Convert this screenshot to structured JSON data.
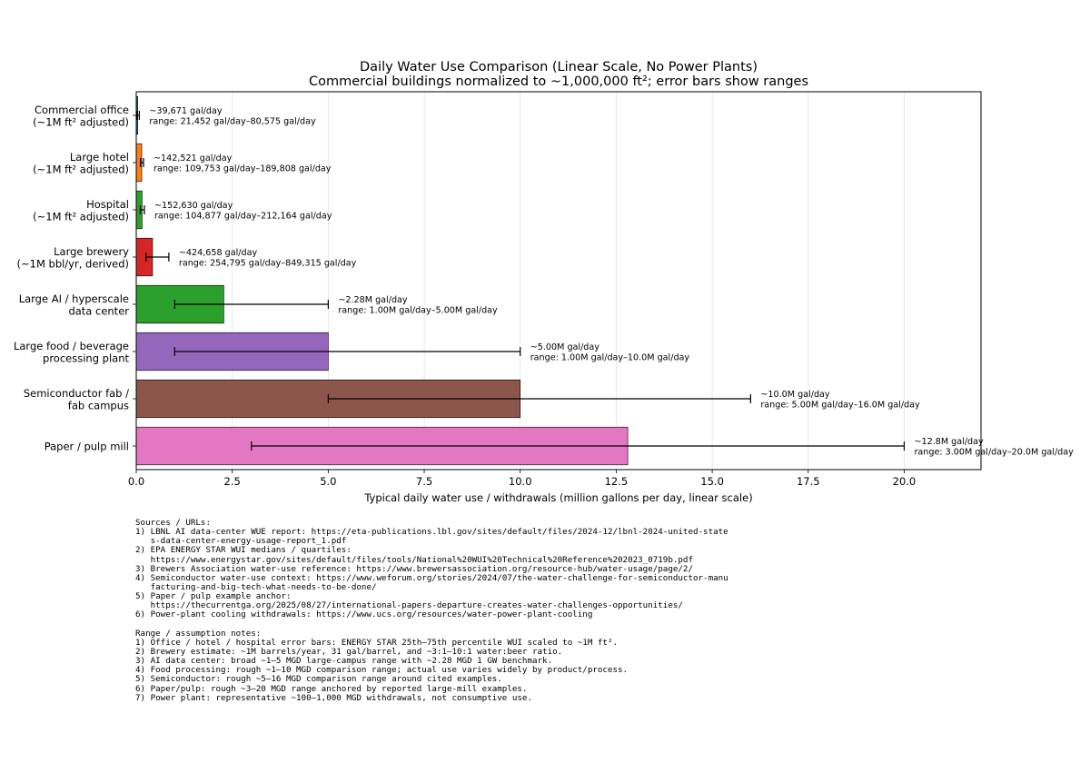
{
  "chart_data": {
    "type": "bar",
    "orientation": "horizontal",
    "title": "Daily Water Use Comparison (Linear Scale, No Power Plants)",
    "subtitle": "Commercial buildings normalized to ~1,000,000 ft²; error bars show ranges",
    "xlabel": "Typical daily water use / withdrawals (million gallons per day, linear scale)",
    "ylabel": "",
    "xlim": [
      0,
      22
    ],
    "xticks": [
      "0.0",
      "2.5",
      "5.0",
      "7.5",
      "10.0",
      "12.5",
      "15.0",
      "17.5",
      "20.0"
    ],
    "grid": "vertical",
    "categories": [
      [
        "Commercial office",
        "(~1M ft² adjusted)"
      ],
      [
        "Large hotel",
        "(~1M ft² adjusted)"
      ],
      [
        "Hospital",
        "(~1M ft² adjusted)"
      ],
      [
        "Large brewery",
        "(~1M bbl/yr, derived)"
      ],
      [
        "Large AI / hyperscale",
        "data center"
      ],
      [
        "Large food / beverage",
        "processing plant"
      ],
      [
        "Semiconductor fab /",
        "fab campus"
      ],
      [
        "Paper / pulp mill"
      ]
    ],
    "values": [
      0.039671,
      0.142521,
      0.15263,
      0.424658,
      2.28,
      5.0,
      10.0,
      12.8
    ],
    "ranges": [
      [
        0.021452,
        0.080575
      ],
      [
        0.109753,
        0.189808
      ],
      [
        0.104877,
        0.212164
      ],
      [
        0.254795,
        0.849315
      ],
      [
        1.0,
        5.0
      ],
      [
        1.0,
        10.0
      ],
      [
        5.0,
        16.0
      ],
      [
        3.0,
        20.0
      ]
    ],
    "colors": [
      "#1f77b4",
      "#ff7f0e",
      "#2ca02c",
      "#d62728",
      "#2ca02c",
      "#9467bd",
      "#8c564b",
      "#e377c2"
    ],
    "annotations": [
      [
        "~39,671 gal/day",
        "range: 21,452 gal/day–80,575 gal/day"
      ],
      [
        "~142,521 gal/day",
        "range: 109,753 gal/day–189,808 gal/day"
      ],
      [
        "~152,630 gal/day",
        "range: 104,877 gal/day–212,164 gal/day"
      ],
      [
        "~424,658 gal/day",
        "range: 254,795 gal/day–849,315 gal/day"
      ],
      [
        "~2.28M gal/day",
        "range: 1.00M gal/day–5.00M gal/day"
      ],
      [
        "~5.00M gal/day",
        "range: 1.00M gal/day–10.0M gal/day"
      ],
      [
        "~10.0M gal/day",
        "range: 5.00M gal/day–16.0M gal/day"
      ],
      [
        "~12.8M gal/day",
        "range: 3.00M gal/day–20.0M gal/day"
      ]
    ]
  },
  "notes": [
    "Sources / URLs:",
    "1) LBNL AI data-center WUE report: https://eta-publications.lbl.gov/sites/default/files/2024-12/lbnl-2024-united-state",
    "   s-data-center-energy-usage-report_1.pdf",
    "2) EPA ENERGY STAR WUI medians / quartiles:",
    "   https://www.energystar.gov/sites/default/files/tools/National%20WUI%20Technical%20Reference%202023_0719b.pdf",
    "3) Brewers Association water-use reference: https://www.brewersassociation.org/resource-hub/water-usage/page/2/",
    "4) Semiconductor water-use context: https://www.weforum.org/stories/2024/07/the-water-challenge-for-semiconductor-manu",
    "   facturing-and-big-tech-what-needs-to-be-done/",
    "5) Paper / pulp example anchor:",
    "   https://thecurrentga.org/2025/08/27/international-papers-departure-creates-water-challenges-opportunities/",
    "6) Power-plant cooling withdrawals: https://www.ucs.org/resources/water-power-plant-cooling",
    "",
    "Range / assumption notes:",
    "1) Office / hotel / hospital error bars: ENERGY STAR 25th–75th percentile WUI scaled to ~1M ft².",
    "2) Brewery estimate: ~1M barrels/year, 31 gal/barrel, and ~3:1–10:1 water:beer ratio.",
    "3) AI data center: broad ~1–5 MGD large-campus range with ~2.28 MGD 1 GW benchmark.",
    "4) Food processing: rough ~1–10 MGD comparison range; actual use varies widely by product/process.",
    "5) Semiconductor: rough ~5–16 MGD comparison range around cited examples.",
    "6) Paper/pulp: rough ~3–20 MGD range anchored by reported large-mill examples.",
    "7) Power plant: representative ~100–1,000 MGD withdrawals, not consumptive use."
  ]
}
